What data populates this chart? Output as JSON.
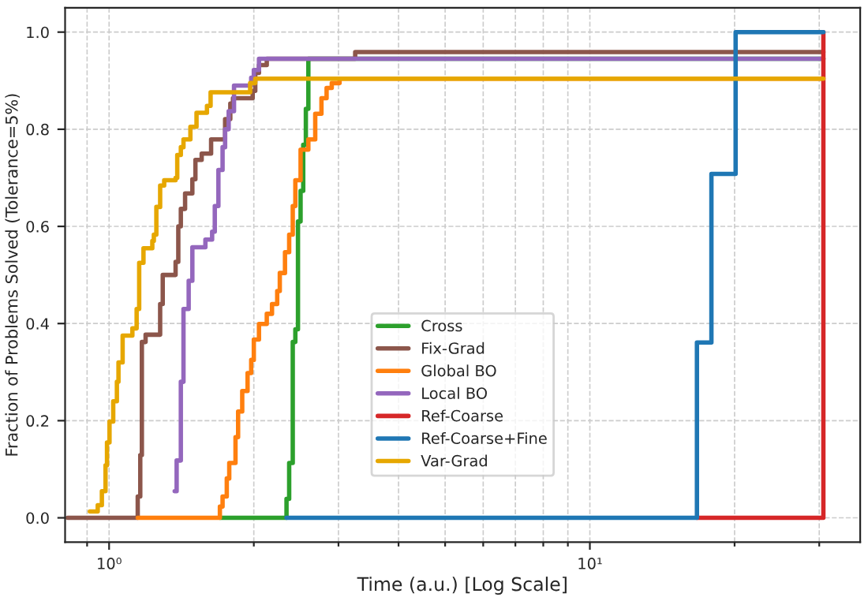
{
  "chart_data": {
    "type": "step",
    "xlabel": "Time (a.u.) [Log Scale]",
    "ylabel": "Fraction of Problems Solved (Tolerance=5%)",
    "log": "x",
    "xlim": [
      0.81,
      36.5
    ],
    "ylim": [
      -0.05,
      1.05
    ],
    "xticks": [
      {
        "value": 0.9,
        "label": null
      },
      {
        "value": 1,
        "label": "10⁰"
      },
      {
        "value": 2,
        "label": null
      },
      {
        "value": 3,
        "label": null
      },
      {
        "value": 4,
        "label": null
      },
      {
        "value": 5,
        "label": null
      },
      {
        "value": 6,
        "label": null
      },
      {
        "value": 7,
        "label": null
      },
      {
        "value": 8,
        "label": null
      },
      {
        "value": 9,
        "label": null
      },
      {
        "value": 10,
        "label": "10¹"
      },
      {
        "value": 20,
        "label": null
      },
      {
        "value": 30,
        "label": null
      }
    ],
    "yticks": [
      {
        "value": 0,
        "label": "0.0"
      },
      {
        "value": 0.2,
        "label": "0.2"
      },
      {
        "value": 0.4,
        "label": "0.4"
      },
      {
        "value": 0.6,
        "label": "0.6"
      },
      {
        "value": 0.8,
        "label": "0.8"
      },
      {
        "value": 1,
        "label": "1.0"
      }
    ],
    "grid": true,
    "legend": "bottom",
    "line_style": "solid",
    "series": [
      {
        "name": "Cross",
        "color": "#2ca02c",
        "x": [
          1.7,
          2.339,
          2.369,
          2.41,
          2.44,
          2.471,
          2.502,
          2.534,
          2.566,
          2.597,
          30.6
        ],
        "values": [
          0,
          0.039,
          0.113,
          0.362,
          0.388,
          0.61,
          0.673,
          0.768,
          0.842,
          0.945,
          0.945
        ]
      },
      {
        "name": "Fix-Grad",
        "color": "#8c564b",
        "x": [
          0.82,
          1.147,
          1.161,
          1.17,
          1.191,
          1.277,
          1.293,
          1.375,
          1.393,
          1.41,
          1.439,
          1.49,
          1.512,
          1.558,
          1.63,
          1.743,
          1.787,
          1.81,
          1.989,
          2.014,
          2.05,
          2.128,
          3.25,
          30.6
        ],
        "values": [
          0,
          0.044,
          0.129,
          0.362,
          0.377,
          0.44,
          0.5,
          0.527,
          0.6,
          0.636,
          0.668,
          0.697,
          0.737,
          0.75,
          0.779,
          0.821,
          0.853,
          0.864,
          0.879,
          0.916,
          0.932,
          0.945,
          0.959,
          0.959
        ]
      },
      {
        "name": "Global BO",
        "color": "#ff7f0e",
        "x": [
          1.147,
          1.7,
          1.722,
          1.757,
          1.778,
          1.832,
          1.855,
          1.892,
          1.941,
          1.975,
          2.0,
          2.05,
          2.128,
          2.182,
          2.237,
          2.265,
          2.322,
          2.369,
          2.41,
          2.44,
          2.502,
          2.597,
          2.684,
          2.765,
          2.834,
          2.905,
          3.016,
          30.6
        ],
        "values": [
          0,
          0.023,
          0.044,
          0.081,
          0.113,
          0.166,
          0.219,
          0.261,
          0.298,
          0.325,
          0.367,
          0.399,
          0.42,
          0.44,
          0.467,
          0.504,
          0.547,
          0.583,
          0.642,
          0.695,
          0.758,
          0.779,
          0.832,
          0.864,
          0.885,
          0.895,
          0.904,
          0.904
        ]
      },
      {
        "name": "Local BO",
        "color": "#9467bd",
        "x": [
          1.369,
          1.382,
          1.41,
          1.428,
          1.464,
          1.49,
          1.586,
          1.638,
          1.659,
          1.688,
          1.722,
          1.743,
          1.773,
          1.819,
          1.975,
          2.0,
          2.05,
          30.6
        ],
        "values": [
          0.055,
          0.118,
          0.28,
          0.43,
          0.488,
          0.557,
          0.573,
          0.589,
          0.642,
          0.716,
          0.763,
          0.8,
          0.837,
          0.89,
          0.906,
          0.922,
          0.945,
          0.945
        ]
      },
      {
        "name": "Ref-Coarse",
        "color": "#d62728",
        "x": [
          16.7,
          30.6
        ],
        "values": [
          0,
          1.0
        ]
      },
      {
        "name": "Ref-Coarse+Fine",
        "color": "#1f77b4",
        "x": [
          2.339,
          16.7,
          17.9,
          20.1,
          30.6
        ],
        "values": [
          0,
          0.361,
          0.708,
          1.0,
          1.0
        ]
      },
      {
        "name": "Var-Grad",
        "color": "#e6a700",
        "x": [
          0.912,
          0.947,
          0.966,
          0.983,
          0.99,
          1.002,
          1.02,
          1.038,
          1.046,
          1.067,
          1.118,
          1.141,
          1.155,
          1.179,
          1.23,
          1.239,
          1.254,
          1.277,
          1.302,
          1.375,
          1.386,
          1.41,
          1.428,
          1.476,
          1.52,
          1.598,
          1.626,
          1.965,
          2.014,
          30.6
        ],
        "values": [
          0.013,
          0.026,
          0.055,
          0.108,
          0.155,
          0.198,
          0.24,
          0.28,
          0.32,
          0.375,
          0.39,
          0.43,
          0.525,
          0.555,
          0.57,
          0.583,
          0.64,
          0.684,
          0.695,
          0.7,
          0.747,
          0.763,
          0.779,
          0.805,
          0.834,
          0.848,
          0.876,
          0.895,
          0.904,
          0.904
        ]
      }
    ]
  }
}
